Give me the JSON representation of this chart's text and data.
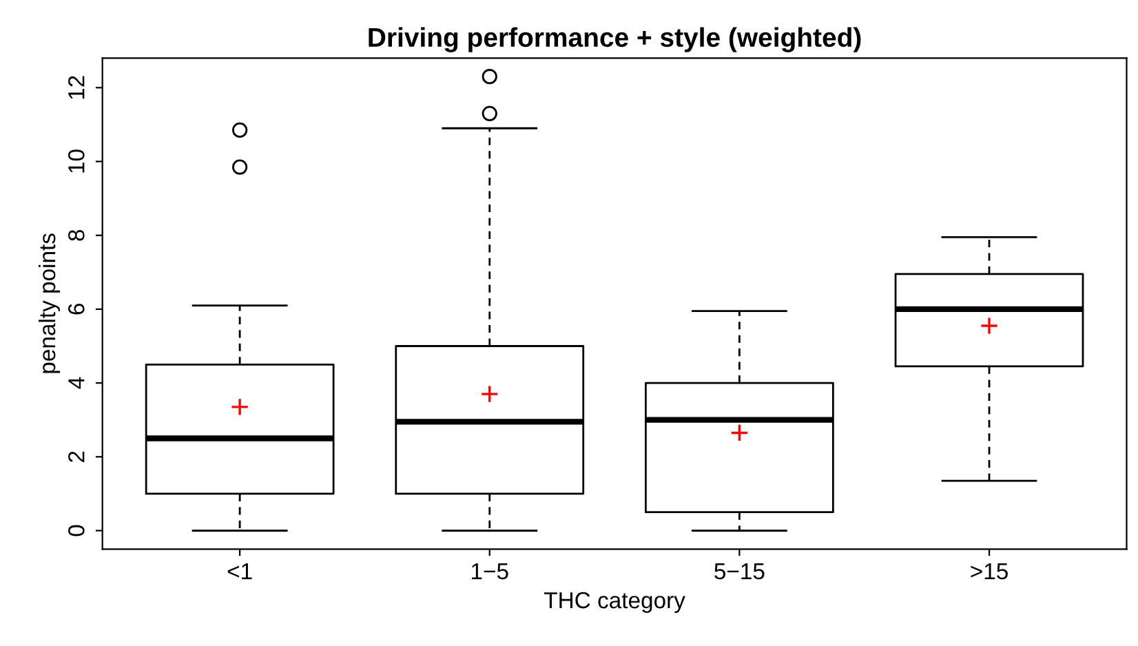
{
  "chart_data": {
    "type": "box",
    "title": "Driving performance + style (weighted)",
    "xlabel": "THC category",
    "ylabel": "penalty points",
    "categories": [
      "<1",
      "1−5",
      "5−15",
      ">15"
    ],
    "boxes": [
      {
        "low": 0,
        "q1": 1.0,
        "median": 2.5,
        "q3": 4.5,
        "high": 6.1,
        "outliers": [
          9.85,
          10.85
        ]
      },
      {
        "low": 0,
        "q1": 1.0,
        "median": 2.95,
        "q3": 5.0,
        "high": 10.9,
        "outliers": [
          11.3,
          12.3
        ]
      },
      {
        "low": 0,
        "q1": 0.5,
        "median": 3.0,
        "q3": 4.0,
        "high": 5.95
      },
      {
        "low": 1.35,
        "q1": 4.45,
        "median": 6.0,
        "q3": 6.95,
        "high": 7.95
      }
    ],
    "series": [
      {
        "type": "scatter",
        "color": "#ff0000",
        "marker": "cross",
        "x": [
          "<1",
          "1−5",
          "5−15",
          ">15"
        ],
        "values": [
          3.35,
          3.7,
          2.65,
          5.55
        ]
      }
    ],
    "ylim": [
      -0.5,
      12.8
    ],
    "yticks": [
      0,
      2,
      4,
      6,
      8,
      10,
      12
    ],
    "grid": false,
    "legend": false
  }
}
